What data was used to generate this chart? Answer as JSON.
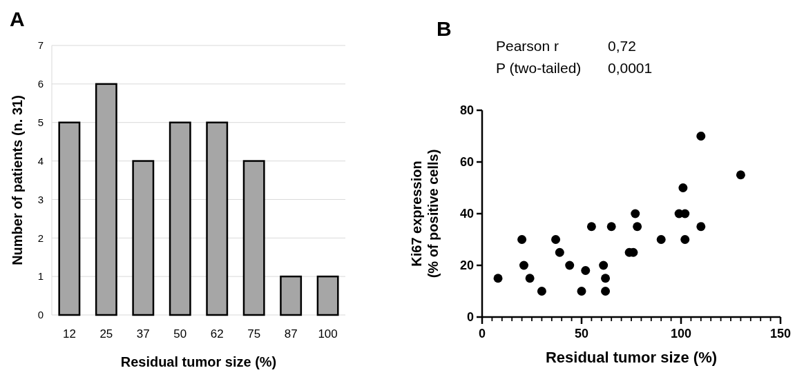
{
  "chart_data": [
    {
      "type": "bar",
      "annotations": [
        "A"
      ],
      "xlabel": "Residual tumor size (%)",
      "ylabel": "Number of patients (n. 31)",
      "categories": [
        "12",
        "25",
        "37",
        "50",
        "62",
        "75",
        "87",
        "100"
      ],
      "values": [
        5,
        6,
        4,
        5,
        5,
        4,
        1,
        1
      ],
      "color": "#a6a6a6",
      "ylim": [
        0,
        7
      ],
      "yticks": [
        0,
        1,
        2,
        3,
        4,
        5,
        6,
        7
      ],
      "grid": "y"
    },
    {
      "type": "scatter",
      "annotations": [
        "B",
        "Pearson r",
        "0,72",
        "P (two-tailed)",
        "0,0001"
      ],
      "xlabel": "Residual tumor size (%)",
      "ylabel": "Ki67 expression\n(% of positive cells)",
      "color": "#000000",
      "marker": "circle",
      "x": [
        8,
        20,
        21,
        24,
        30,
        37,
        39,
        44,
        50,
        52,
        55,
        61,
        62,
        62,
        65,
        74,
        76,
        77,
        78,
        90,
        99,
        102,
        101,
        102,
        110,
        110,
        130
      ],
      "values": [
        15,
        30,
        20,
        15,
        10,
        30,
        25,
        20,
        10,
        18,
        35,
        20,
        15,
        10,
        35,
        25,
        25,
        40,
        35,
        30,
        40,
        40,
        50,
        30,
        70,
        35,
        55
      ],
      "xlim": [
        0,
        150
      ],
      "xticks": [
        0,
        {
          "value": 5,
          "label": null
        },
        {
          "value": 10,
          "label": null
        },
        {
          "value": 15,
          "label": null
        },
        {
          "value": 20,
          "label": null
        },
        {
          "value": 25,
          "label": null
        },
        {
          "value": 30,
          "label": null
        },
        {
          "value": 35,
          "label": null
        },
        {
          "value": 40,
          "label": null
        },
        {
          "value": 45,
          "label": null
        },
        50,
        {
          "value": 55,
          "label": null
        },
        {
          "value": 60,
          "label": null
        },
        {
          "value": 65,
          "label": null
        },
        {
          "value": 70,
          "label": null
        },
        {
          "value": 75,
          "label": null
        },
        {
          "value": 80,
          "label": null
        },
        {
          "value": 85,
          "label": null
        },
        {
          "value": 90,
          "label": null
        },
        {
          "value": 95,
          "label": null
        },
        100,
        {
          "value": 105,
          "label": null
        },
        {
          "value": 110,
          "label": null
        },
        {
          "value": 115,
          "label": null
        },
        {
          "value": 120,
          "label": null
        },
        {
          "value": 125,
          "label": null
        },
        {
          "value": 130,
          "label": null
        },
        {
          "value": 135,
          "label": null
        },
        {
          "value": 140,
          "label": null
        },
        {
          "value": 145,
          "label": null
        },
        150
      ],
      "ylim": [
        0,
        80
      ],
      "yticks": [
        0,
        20,
        40,
        60,
        80
      ],
      "grid": false
    }
  ]
}
